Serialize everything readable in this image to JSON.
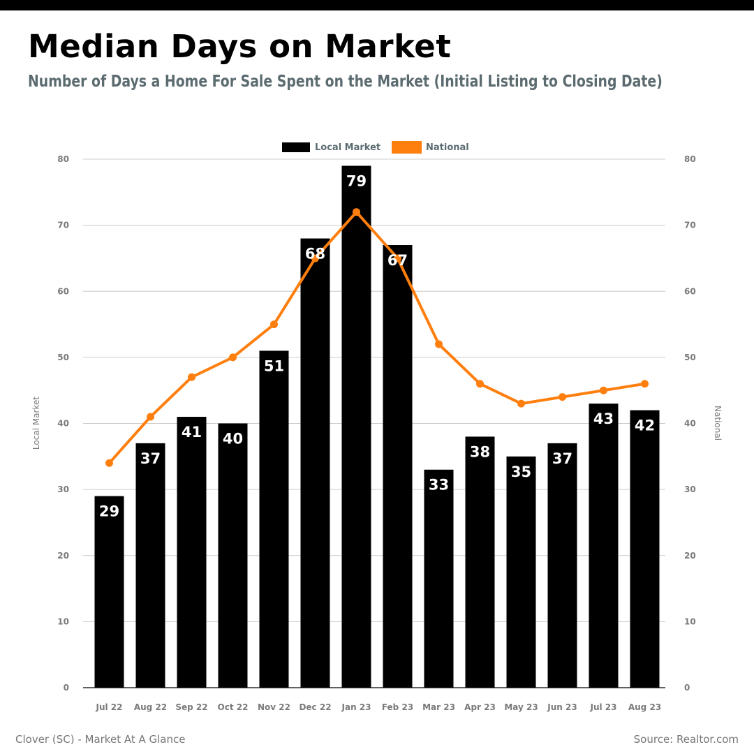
{
  "title": "Median Days on Market",
  "subtitle": "Number of Days a Home For Sale Spent on the Market (Initial Listing to Closing Date)",
  "footer": {
    "left": "Clover (SC) - Market At A Glance",
    "right": "Source: Realtor.com"
  },
  "colors": {
    "local": "#000000",
    "national": "#ff7f0e",
    "subtitle": "#5b6b70",
    "grid": "#cccccc",
    "tick": "#7a7a7a"
  },
  "chart_data": {
    "type": "bar",
    "categories": [
      "Jul 22",
      "Aug 22",
      "Sep 22",
      "Oct 22",
      "Nov 22",
      "Dec 22",
      "Jan 23",
      "Feb 23",
      "Mar 23",
      "Apr 23",
      "May 23",
      "Jun 23",
      "Jul 23",
      "Aug 23"
    ],
    "series": [
      {
        "name": "Local Market",
        "type": "bar",
        "axis": "left",
        "values": [
          29,
          37,
          41,
          40,
          51,
          68,
          79,
          67,
          33,
          38,
          35,
          37,
          43,
          42
        ]
      },
      {
        "name": "National",
        "type": "line",
        "axis": "right",
        "values": [
          34,
          41,
          47,
          50,
          55,
          65,
          72,
          65,
          52,
          46,
          43,
          44,
          45,
          46
        ]
      }
    ],
    "ylabel_left": "Local Market",
    "ylabel_right": "National",
    "ylim": [
      0,
      80
    ],
    "yticks": [
      0,
      10,
      20,
      30,
      40,
      50,
      60,
      70,
      80
    ],
    "grid": true,
    "legend": "top-center"
  }
}
